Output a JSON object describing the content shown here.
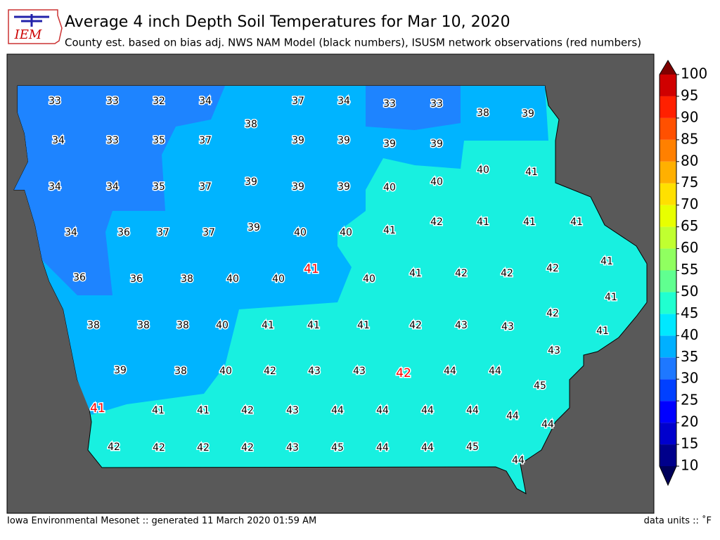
{
  "header": {
    "logo": "IEM",
    "title": "Average 4 inch Depth Soil Temperatures for Mar 10, 2020",
    "subtitle": "County est. based on bias adj. NWS NAM Model (black numbers), ISUSM network observations (red numbers)"
  },
  "map": {
    "model_values": [
      33,
      33,
      32,
      34,
      37,
      34,
      33,
      33,
      38,
      39,
      38,
      34,
      33,
      35,
      37,
      39,
      39,
      39,
      39,
      40,
      41,
      34,
      34,
      35,
      37,
      39,
      39,
      39,
      40,
      40,
      42,
      41,
      41,
      41,
      34,
      36,
      37,
      37,
      39,
      40,
      40,
      41,
      41,
      42,
      42,
      42,
      41,
      40,
      40,
      38,
      36,
      36,
      40,
      41,
      42,
      43,
      43,
      42,
      41,
      41,
      41,
      40,
      38,
      38,
      38,
      41,
      43,
      39,
      38,
      40,
      42,
      43,
      43,
      44,
      44,
      45,
      41,
      41,
      42,
      43,
      44,
      44,
      44,
      44,
      44,
      44,
      42,
      42,
      42,
      42,
      43,
      45,
      44,
      44,
      45,
      44
    ],
    "observations": [
      41,
      42,
      41
    ],
    "colorbar": {
      "ticks": [
        10,
        15,
        20,
        25,
        30,
        35,
        40,
        45,
        50,
        55,
        60,
        65,
        70,
        75,
        80,
        85,
        90,
        95,
        100
      ],
      "colors": [
        "#00008b",
        "#0000cd",
        "#0000ff",
        "#0040ff",
        "#1e78ff",
        "#00b0ff",
        "#00e8ff",
        "#20ffd0",
        "#60ff90",
        "#90ff60",
        "#c0ff30",
        "#e8ff00",
        "#ffe000",
        "#ffb000",
        "#ff8000",
        "#ff5000",
        "#ff2000",
        "#d00000"
      ],
      "under": "#00005a",
      "over": "#800000"
    }
  },
  "footer": {
    "left": "Iowa Environmental Mesonet :: generated 11 March 2020 01:59 AM",
    "right": "data units :: ˚F"
  }
}
